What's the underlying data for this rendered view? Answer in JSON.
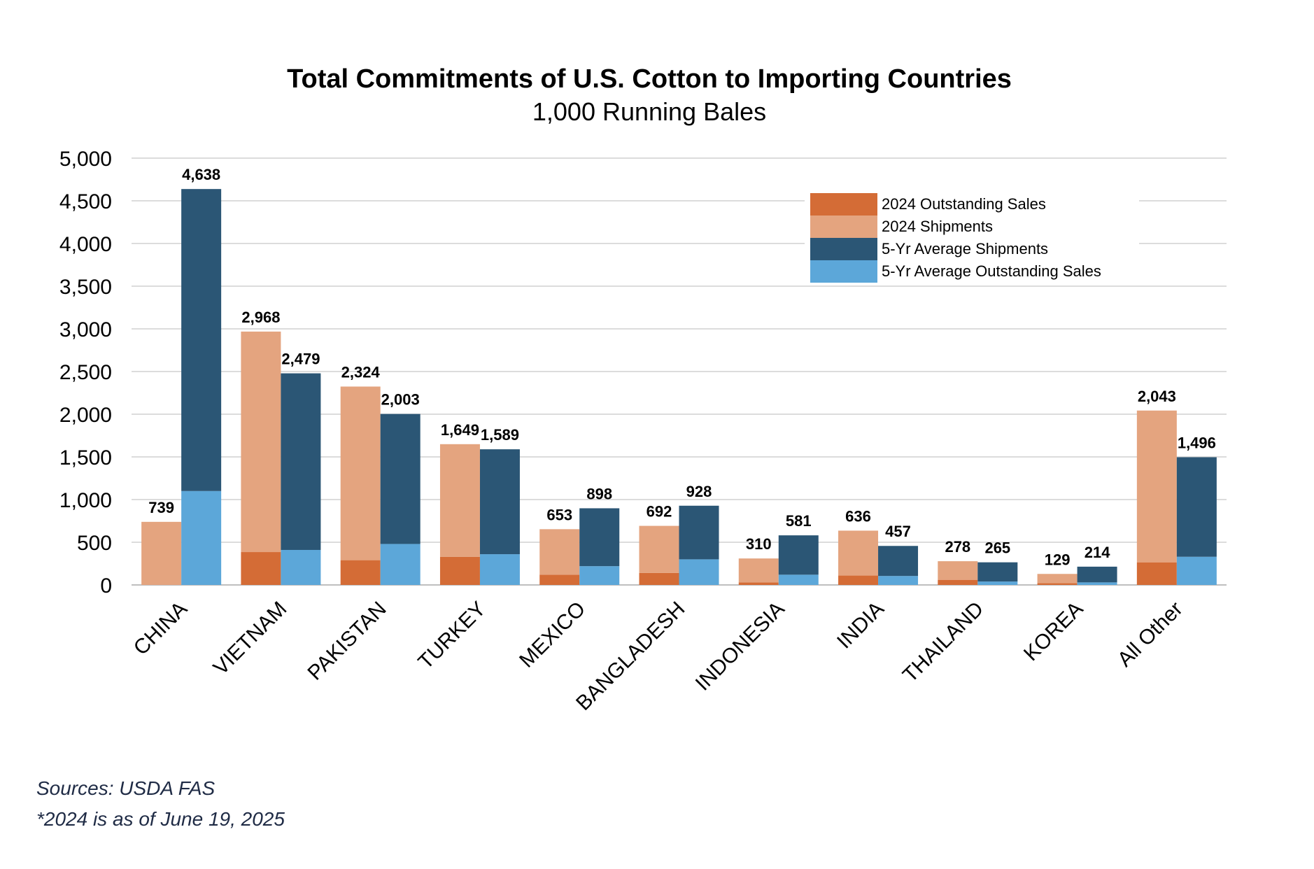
{
  "chart_data": {
    "type": "bar",
    "title": "Total Commitments of U.S. Cotton to Importing Countries",
    "subtitle": "1,000 Running Bales",
    "categories": [
      "CHINA",
      "VIETNAM",
      "PAKISTAN",
      "TURKEY",
      "MEXICO",
      "BANGLADESH",
      "INDONESIA",
      "INDIA",
      "THAILAND",
      "KOREA",
      "All Other"
    ],
    "ylim": [
      0,
      5000
    ],
    "yticks": [
      "0",
      "500",
      "1,000",
      "1,500",
      "2,000",
      "2,500",
      "3,000",
      "3,500",
      "4,000",
      "4,500",
      "5,000"
    ],
    "grid": true,
    "legend_position": "top-right",
    "stacks": [
      {
        "name": "2024",
        "series": [
          {
            "name": "2024 Outstanding Sales",
            "color": "#d46c36",
            "values": [
              0,
              385,
              290,
              330,
              120,
              140,
              30,
              110,
              60,
              20,
              265
            ]
          },
          {
            "name": "2024 Shipments",
            "color": "#e4a47f",
            "values": [
              739,
              2583,
              2034,
              1319,
              533,
              552,
              280,
              526,
              218,
              109,
              1778
            ]
          }
        ],
        "totals": [
          739,
          2968,
          2324,
          1649,
          653,
          692,
          310,
          636,
          278,
          129,
          2043
        ],
        "total_labels": [
          "739",
          "2,968",
          "2,324",
          "1,649",
          "653",
          "692",
          "310",
          "636",
          "278",
          "129",
          "2,043"
        ]
      },
      {
        "name": "5-Yr Average",
        "series": [
          {
            "name": "5-Yr Average Outstanding Sales",
            "color": "#5ca7d9",
            "values": [
              1100,
              410,
              480,
              360,
              220,
              300,
              120,
              105,
              40,
              30,
              330
            ]
          },
          {
            "name": "5-Yr Average Shipments",
            "color": "#2b5675",
            "values": [
              3538,
              2069,
              1523,
              1229,
              678,
              628,
              461,
              352,
              225,
              184,
              1166
            ]
          }
        ],
        "totals": [
          4638,
          2479,
          2003,
          1589,
          898,
          928,
          581,
          457,
          265,
          214,
          1496
        ],
        "total_labels": [
          "4,638",
          "2,479",
          "2,003",
          "1,589",
          "898",
          "928",
          "581",
          "457",
          "265",
          "214",
          "1,496"
        ]
      }
    ],
    "legend": [
      {
        "label": "2024 Outstanding Sales",
        "color": "#d46c36"
      },
      {
        "label": "2024 Shipments",
        "color": "#e4a47f"
      },
      {
        "label": "5-Yr Average Shipments",
        "color": "#2b5675"
      },
      {
        "label": "5-Yr Average Outstanding Sales",
        "color": "#5ca7d9"
      }
    ]
  },
  "footer": {
    "source": "Sources: USDA FAS",
    "note": "*2024 is as of June 19, 2025"
  }
}
